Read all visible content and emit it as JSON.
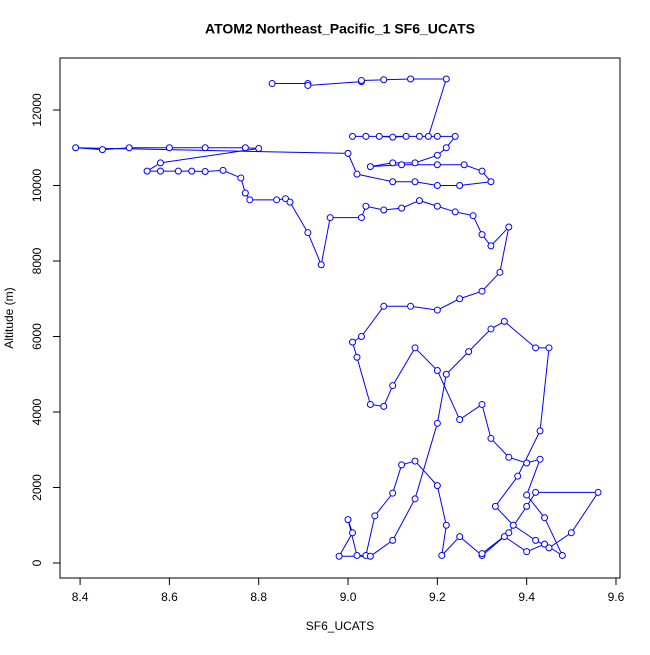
{
  "chart_data": {
    "type": "line",
    "title": "ATOM2 Northeast_Pacific_1 SF6_UCATS",
    "x_label": "SF6_UCATS",
    "y_label": "Altitude (m)",
    "xlim": [
      8.355,
      9.609
    ],
    "ylim": [
      -397,
      13377
    ],
    "xticks": [
      {
        "value": 8.4,
        "label": "8.4"
      },
      {
        "value": 8.6,
        "label": "8.6"
      },
      {
        "value": 8.8,
        "label": "8.8"
      },
      {
        "value": 9.0,
        "label": "9.0"
      },
      {
        "value": 9.2,
        "label": "9.2"
      },
      {
        "value": 9.4,
        "label": "9.4"
      },
      {
        "value": 9.6,
        "label": "9.6"
      }
    ],
    "yticks": [
      0,
      2000,
      4000,
      6000,
      8000,
      10000,
      12000
    ],
    "color": "#0000ff",
    "markers": true,
    "x": [
      8.83,
      8.91,
      8.91,
      9.03,
      9.03,
      9.08,
      9.14,
      9.22,
      9.18,
      9.01,
      9.04,
      9.07,
      9.1,
      9.13,
      9.16,
      9.2,
      9.24,
      9.22,
      9.2,
      9.15,
      9.1,
      9.05,
      9.12,
      9.2,
      9.26,
      9.3,
      9.32,
      9.25,
      9.2,
      9.15,
      9.1,
      9.02,
      9.0,
      8.39,
      8.45,
      8.51,
      8.6,
      8.68,
      8.77,
      8.8,
      8.58,
      8.55,
      8.58,
      8.62,
      8.65,
      8.68,
      8.72,
      8.76,
      8.77,
      8.78,
      8.84,
      8.86,
      8.87,
      8.91,
      8.94,
      8.96,
      9.03,
      9.04,
      9.08,
      9.12,
      9.16,
      9.2,
      9.24,
      9.28,
      9.3,
      9.32,
      9.36,
      9.34,
      9.3,
      9.25,
      9.2,
      9.14,
      9.08,
      9.03,
      9.01,
      9.02,
      9.05,
      9.08,
      9.1,
      9.15,
      9.2,
      9.25,
      9.3,
      9.32,
      9.36,
      9.4,
      9.43,
      9.4,
      9.44,
      9.48,
      9.44,
      9.4,
      9.35,
      9.3,
      9.25,
      9.21,
      9.22,
      9.2,
      9.15,
      9.12,
      9.1,
      9.06,
      9.04,
      9.02,
      9.0,
      9.01,
      8.98,
      9.05,
      9.1,
      9.15,
      9.2,
      9.22,
      9.27,
      9.32,
      9.35,
      9.42,
      9.45,
      9.43,
      9.38,
      9.33,
      9.37,
      9.42,
      9.45,
      9.5,
      9.56,
      9.42,
      9.4,
      9.36,
      9.3
    ],
    "values": [
      12700,
      12700,
      12650,
      12750,
      12780,
      12800,
      12820,
      12820,
      11300,
      11300,
      11300,
      11300,
      11280,
      11300,
      11300,
      11300,
      11300,
      11000,
      10800,
      10600,
      10600,
      10500,
      10550,
      10550,
      10550,
      10380,
      10100,
      10000,
      10000,
      10100,
      10100,
      10300,
      10850,
      11000,
      10950,
      11000,
      11000,
      11000,
      11000,
      10980,
      10600,
      10380,
      10380,
      10380,
      10380,
      10370,
      10400,
      10200,
      9800,
      9620,
      9620,
      9650,
      9560,
      8750,
      7900,
      9150,
      9150,
      9450,
      9350,
      9400,
      9600,
      9450,
      9300,
      9200,
      8700,
      8400,
      8900,
      7700,
      7200,
      7000,
      6700,
      6800,
      6800,
      6000,
      5850,
      5450,
      4200,
      4150,
      4700,
      5700,
      5100,
      3800,
      4200,
      3300,
      2800,
      2650,
      2750,
      1800,
      1200,
      200,
      500,
      300,
      700,
      200,
      700,
      200,
      1000,
      2050,
      2700,
      2600,
      1850,
      1250,
      200,
      200,
      1150,
      800,
      180,
      180,
      600,
      1700,
      3700,
      5000,
      5600,
      6200,
      6400,
      5700,
      5700,
      3500,
      2300,
      1500,
      1000,
      600,
      400,
      800,
      1870,
      1870,
      1500,
      800,
      250
    ]
  }
}
